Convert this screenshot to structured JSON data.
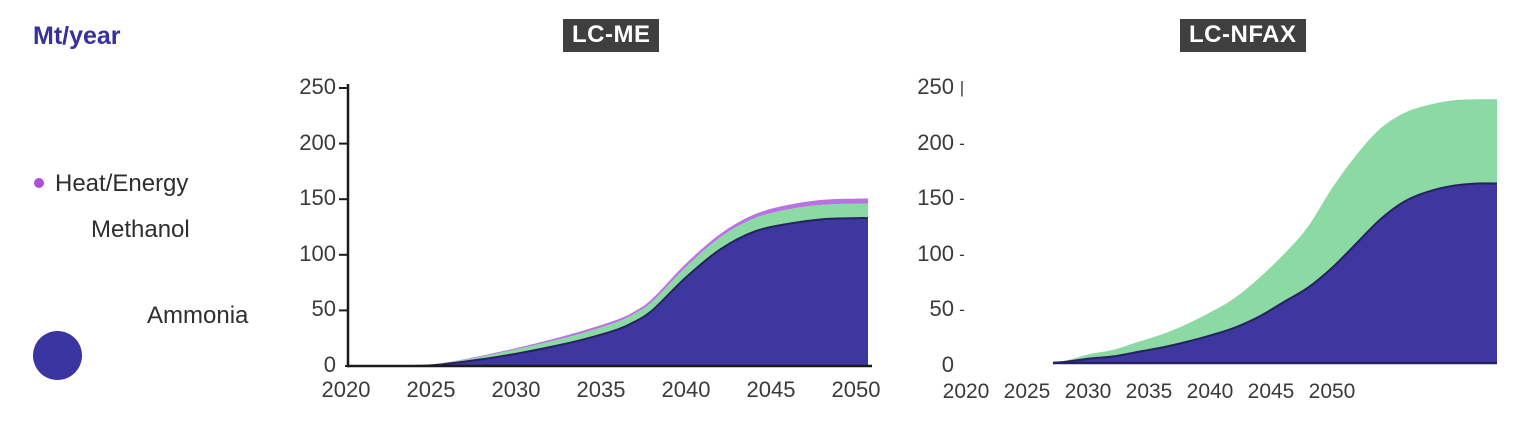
{
  "unit_label": "Mt/year",
  "colors": {
    "ammonia": "#3e37a0",
    "methanol": "#8bd9a3",
    "heat_energy": "#b873e0",
    "heat_dot": "#ae4fd6",
    "ammonia_bubble": "#3b35a2",
    "ammonia_edge": "#26225f",
    "badge_bg": "#3f3f3f",
    "badge_text": "#ffffff",
    "unit_text": "#38309b"
  },
  "legend": {
    "items": [
      {
        "label": "Heat/Energy",
        "marker": "small-dot"
      },
      {
        "label": "Methanol",
        "marker": "none"
      },
      {
        "label": "Ammonia",
        "marker": "large-bubble"
      }
    ]
  },
  "chart_data": [
    {
      "type": "area",
      "stacked": true,
      "title": "LC-ME",
      "ylabel": "Mt/year",
      "ylim": [
        0,
        250
      ],
      "grid": false,
      "axes_drawn": true,
      "y_ticks": [
        "250",
        "200",
        "150",
        "100",
        "50",
        "0"
      ],
      "x_ticks": [
        "2020",
        "2025",
        "2030",
        "2035",
        "2040",
        "2045",
        "2050"
      ],
      "x": [
        2020,
        2022,
        2024,
        2025,
        2026,
        2028,
        2030,
        2032,
        2034,
        2036,
        2037,
        2038,
        2040,
        2042,
        2044,
        2046,
        2048,
        2050
      ],
      "series": [
        {
          "name": "Ammonia",
          "color": "#3e37a0",
          "values": [
            0,
            0,
            0,
            0.5,
            2,
            6,
            11,
            17,
            24,
            33,
            40,
            50,
            80,
            105,
            121,
            128,
            132,
            133
          ]
        },
        {
          "name": "Methanol",
          "color": "#8bd9a3",
          "values": [
            0,
            0,
            0,
            0.3,
            1,
            2.5,
            4,
            5,
            6,
            7,
            7.5,
            8,
            9.5,
            11,
            12,
            13,
            13,
            13
          ]
        },
        {
          "name": "Heat/Energy",
          "color": "#b873e0",
          "values": [
            0,
            0,
            0,
            0,
            0.3,
            0.8,
            1,
            1.5,
            2,
            2,
            2,
            2.5,
            3,
            3,
            3.5,
            4,
            4.5,
            4.5
          ]
        }
      ]
    },
    {
      "type": "area",
      "stacked": true,
      "title": "LC-NFAX",
      "ylabel": "Mt/year",
      "ylim": [
        0,
        250
      ],
      "grid": false,
      "axes_drawn": false,
      "note": "stacked area visually extends beyond the last x-axis label (2050)",
      "y_ticks": [
        "250",
        "200",
        "150",
        "100",
        "50",
        "0"
      ],
      "y_tick_marks": [
        "|",
        "-",
        "-",
        "-",
        "-",
        ""
      ],
      "x_ticks": [
        "2020",
        "2025",
        "2030",
        "2035",
        "2040",
        "2045",
        "2050"
      ],
      "x": [
        2027,
        2028,
        2030,
        2032,
        2034,
        2036,
        2038,
        2040,
        2042,
        2044,
        2046,
        2048,
        2050,
        2052,
        2054,
        2056,
        2058,
        2060,
        2062
      ],
      "series": [
        {
          "name": "Ammonia",
          "color": "#3e37a0",
          "values": [
            0.3,
            1,
            4,
            6,
            10,
            14,
            19,
            25,
            32,
            42,
            55,
            68,
            86,
            108,
            130,
            146,
            155,
            160,
            162
          ]
        },
        {
          "name": "Methanol",
          "color": "#8bd9a3",
          "values": [
            0.3,
            1,
            4,
            6,
            9,
            12,
            16,
            21,
            27,
            35,
            43,
            55,
            72,
            80,
            82,
            80,
            78,
            77,
            76
          ]
        }
      ]
    }
  ]
}
